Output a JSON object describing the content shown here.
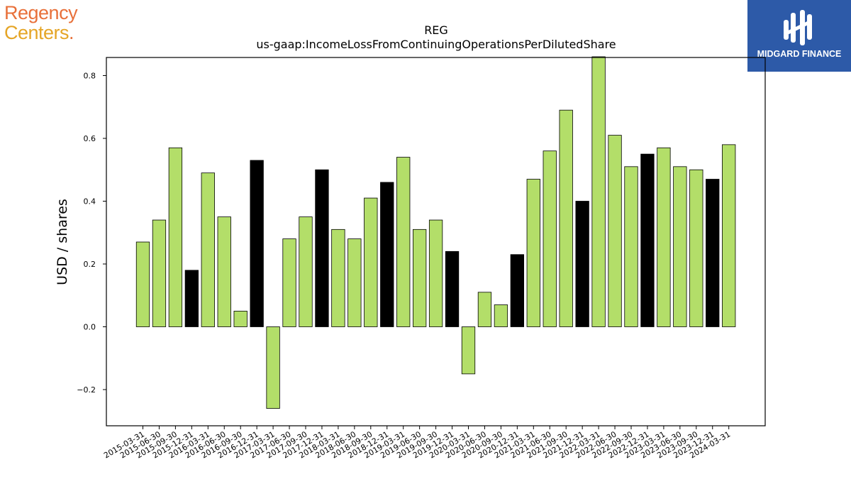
{
  "logos": {
    "left_line1": "Regency",
    "left_line2": "Centers",
    "left_dot": ".",
    "right_name": "MIDGARD FINANCE",
    "left_color1": "#e8703a",
    "left_color2": "#e5a526",
    "right_bg": "#2d5aa8"
  },
  "chart_data": {
    "type": "bar",
    "title": "REG",
    "subtitle": "us-gaap:IncomeLossFromContinuingOperationsPerDilutedShare",
    "ylabel": "USD / shares",
    "xlabel": "",
    "ylim": [
      -0.32,
      0.86
    ],
    "yticks": [
      -0.2,
      0.0,
      0.2,
      0.4,
      0.6,
      0.8
    ],
    "ytick_labels": [
      "−0.2",
      "0.0",
      "0.2",
      "0.4",
      "0.6",
      "0.8"
    ],
    "grid": false,
    "colors": {
      "normal": "#b3de69",
      "highlight": "#000000",
      "edge": "#000000"
    },
    "categories": [
      "2015-03-31",
      "2015-06-30",
      "2015-09-30",
      "2015-12-31",
      "2016-03-31",
      "2016-06-30",
      "2016-09-30",
      "2016-12-31",
      "2017-03-31",
      "2017-06-30",
      "2017-09-30",
      "2017-12-31",
      "2018-03-31",
      "2018-06-30",
      "2018-09-30",
      "2018-12-31",
      "2019-03-31",
      "2019-06-30",
      "2019-09-30",
      "2019-12-31",
      "2020-03-31",
      "2020-06-30",
      "2020-09-30",
      "2020-12-31",
      "2021-03-31",
      "2021-06-30",
      "2021-09-30",
      "2021-12-31",
      "2022-03-31",
      "2022-06-30",
      "2022-09-30",
      "2022-12-31",
      "2023-03-31",
      "2023-06-30",
      "2023-09-30",
      "2023-12-31",
      "2024-03-31"
    ],
    "values": [
      0.27,
      0.34,
      0.57,
      0.18,
      0.49,
      0.35,
      0.05,
      0.53,
      -0.26,
      0.28,
      0.35,
      0.5,
      0.31,
      0.28,
      0.41,
      0.46,
      0.54,
      0.31,
      0.34,
      0.24,
      -0.15,
      0.11,
      0.07,
      0.23,
      0.47,
      0.56,
      0.69,
      0.4,
      0.86,
      0.61,
      0.51,
      0.55,
      0.57,
      0.51,
      0.5,
      0.47,
      0.58
    ],
    "highlight": [
      false,
      false,
      false,
      true,
      false,
      false,
      false,
      true,
      false,
      false,
      false,
      true,
      false,
      false,
      false,
      true,
      false,
      false,
      false,
      true,
      false,
      false,
      false,
      true,
      false,
      false,
      false,
      true,
      false,
      false,
      false,
      true,
      false,
      false,
      false,
      true,
      false
    ]
  }
}
